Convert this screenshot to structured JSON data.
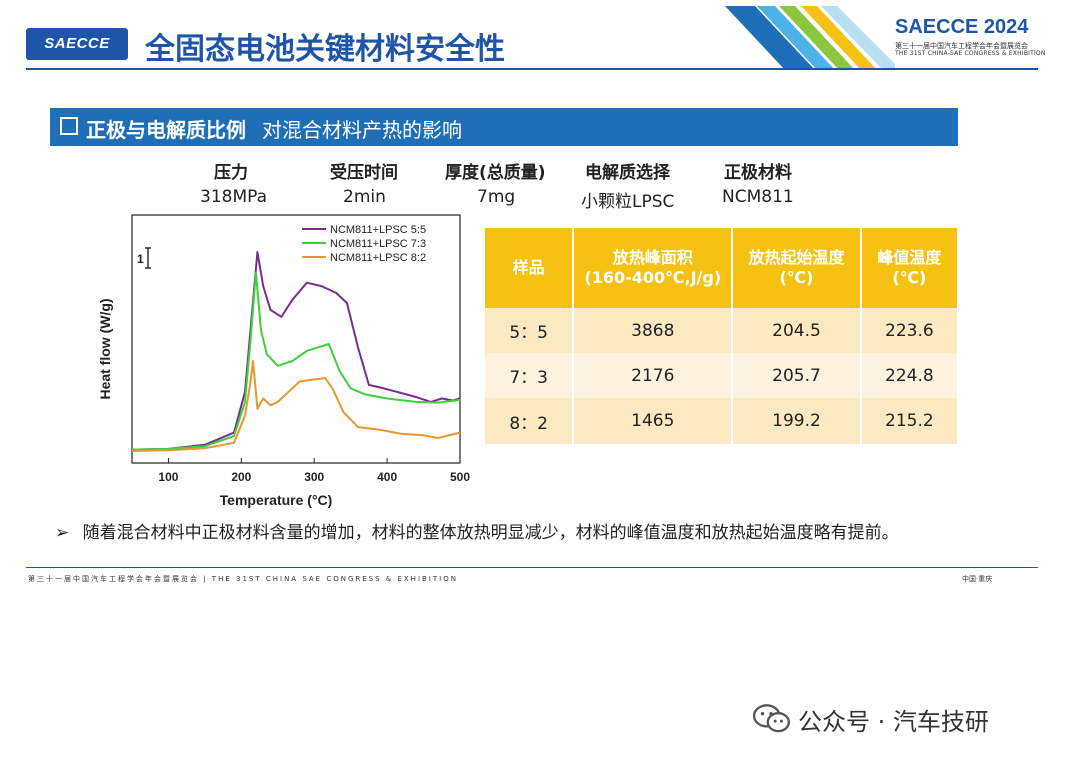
{
  "header": {
    "logo_text": "SAECCE",
    "title": "全固态电池关键材料安全性",
    "brand_title": "SAECCE 2024",
    "brand_sub1": "第三十一届中国汽车工程学会年会暨展览会",
    "brand_sub2": "THE 31ST CHINA-SAE CONGRESS & EXHIBITION",
    "colors": {
      "brand_blue": "#1f55a8",
      "section_blue": "#1f6fb8",
      "table_yellow": "#f5c214"
    }
  },
  "section": {
    "bold": "正极与电解质比例",
    "rest": "对混合材料产热的影响"
  },
  "conditions": {
    "headers": [
      "压力",
      "受压时间",
      "厚度(总质量)",
      "电解质选择",
      "正极材料"
    ],
    "values": [
      "318MPa",
      "2min",
      "7mg",
      "小颗粒LPSC",
      "NCM811"
    ]
  },
  "table": {
    "headers": [
      [
        "样品"
      ],
      [
        "放热峰面积",
        "(160-400℃,J/g)"
      ],
      [
        "放热起始温度",
        "(℃)"
      ],
      [
        "峰值温度",
        "(℃)"
      ]
    ],
    "rows": [
      [
        "5：5",
        "3868",
        "204.5",
        "223.6"
      ],
      [
        "7：3",
        "2176",
        "205.7",
        "224.8"
      ],
      [
        "8：2",
        "1465",
        "199.2",
        "215.2"
      ]
    ]
  },
  "chart_data": {
    "type": "line",
    "title": "",
    "xlabel": "Temperature (°C)",
    "ylabel": "Heat flow (W/g)",
    "xlim": [
      50,
      500
    ],
    "x_ticks": [
      "100",
      "200",
      "300",
      "400",
      "500"
    ],
    "scale_bar_label": "1",
    "legend_position": "top-right",
    "series": [
      {
        "name": "NCM811+LPSC 5:5",
        "color": "#7b2d8e",
        "points": [
          [
            50,
            0.05
          ],
          [
            100,
            0.06
          ],
          [
            150,
            0.12
          ],
          [
            190,
            0.3
          ],
          [
            205,
            0.9
          ],
          [
            215,
            2.1
          ],
          [
            222,
            2.95
          ],
          [
            230,
            2.45
          ],
          [
            240,
            2.1
          ],
          [
            255,
            2.0
          ],
          [
            270,
            2.25
          ],
          [
            290,
            2.5
          ],
          [
            310,
            2.45
          ],
          [
            330,
            2.35
          ],
          [
            345,
            2.2
          ],
          [
            360,
            1.55
          ],
          [
            375,
            1.0
          ],
          [
            395,
            0.95
          ],
          [
            420,
            0.88
          ],
          [
            440,
            0.82
          ],
          [
            460,
            0.75
          ],
          [
            475,
            0.8
          ],
          [
            490,
            0.77
          ],
          [
            500,
            0.8
          ]
        ]
      },
      {
        "name": "NCM811+LPSC 7:3",
        "color": "#3fcf3f",
        "points": [
          [
            50,
            0.05
          ],
          [
            100,
            0.06
          ],
          [
            150,
            0.1
          ],
          [
            190,
            0.25
          ],
          [
            205,
            0.75
          ],
          [
            213,
            1.7
          ],
          [
            220,
            2.65
          ],
          [
            227,
            1.8
          ],
          [
            235,
            1.45
          ],
          [
            250,
            1.28
          ],
          [
            270,
            1.35
          ],
          [
            290,
            1.5
          ],
          [
            305,
            1.55
          ],
          [
            320,
            1.6
          ],
          [
            335,
            1.2
          ],
          [
            350,
            0.95
          ],
          [
            370,
            0.86
          ],
          [
            400,
            0.8
          ],
          [
            440,
            0.75
          ],
          [
            470,
            0.74
          ],
          [
            500,
            0.78
          ]
        ]
      },
      {
        "name": "NCM811+LPSC 8:2",
        "color": "#e8962e",
        "points": [
          [
            50,
            0.03
          ],
          [
            100,
            0.04
          ],
          [
            150,
            0.07
          ],
          [
            190,
            0.15
          ],
          [
            205,
            0.55
          ],
          [
            212,
            1.0
          ],
          [
            216,
            1.35
          ],
          [
            222,
            0.65
          ],
          [
            230,
            0.8
          ],
          [
            240,
            0.7
          ],
          [
            250,
            0.75
          ],
          [
            265,
            0.9
          ],
          [
            280,
            1.05
          ],
          [
            300,
            1.08
          ],
          [
            315,
            1.1
          ],
          [
            325,
            0.95
          ],
          [
            340,
            0.6
          ],
          [
            360,
            0.38
          ],
          [
            390,
            0.34
          ],
          [
            420,
            0.28
          ],
          [
            450,
            0.26
          ],
          [
            470,
            0.22
          ],
          [
            500,
            0.3
          ]
        ]
      }
    ],
    "ylim": [
      0,
      3.2
    ]
  },
  "bullet": {
    "symbol": "➢",
    "text": "随着混合材料中正极材料含量的增加，材料的整体放热明显减少，材料的峰值温度和放热起始温度略有提前。"
  },
  "footer": {
    "left": "第三十一届中国汽车工程学会年会暨展览会 | THE 31ST CHINA SAE CONGRESS & EXHIBITION",
    "right": "中国·重庆"
  },
  "watermark": "公众号 · 汽车技研"
}
